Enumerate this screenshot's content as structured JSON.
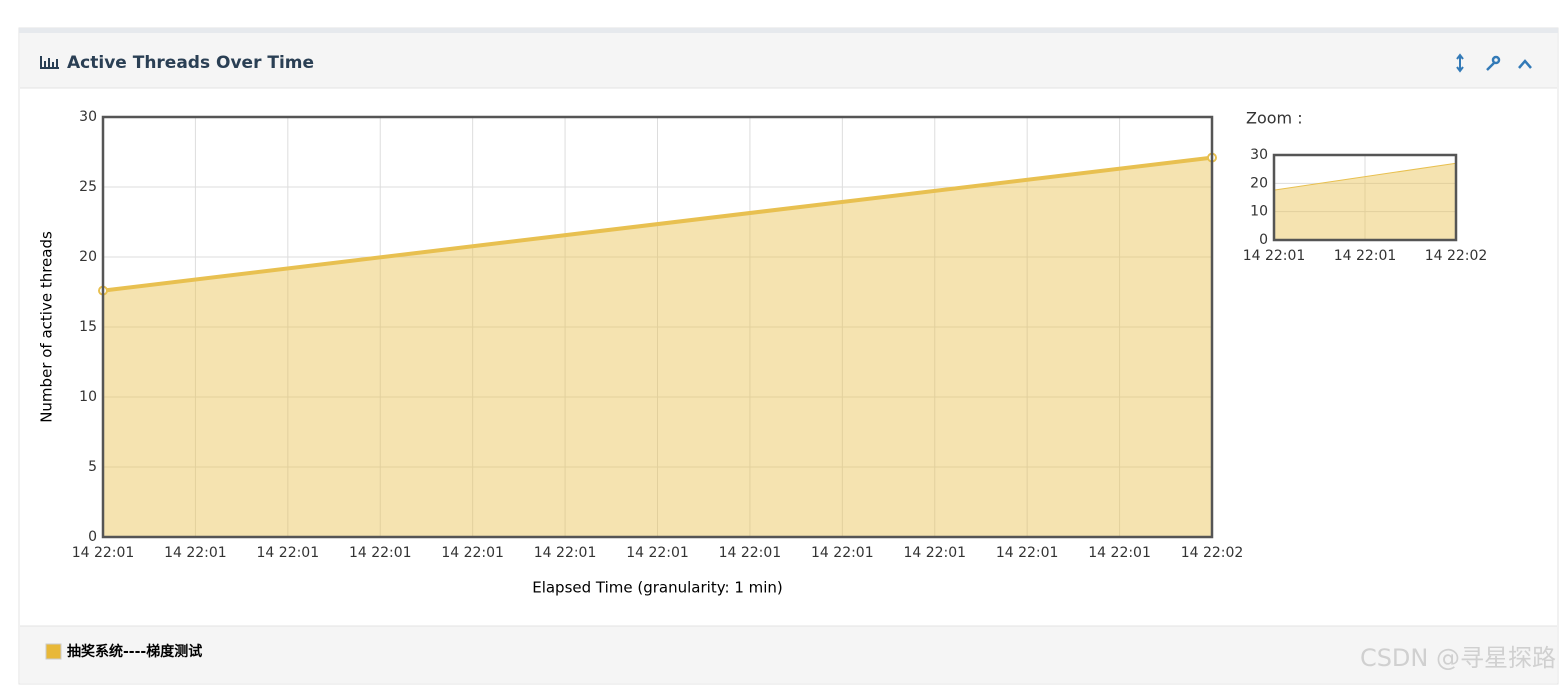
{
  "header": {
    "title": "Active Threads Over Time"
  },
  "chart_data": [
    {
      "type": "area",
      "ylabel": "Number of active threads",
      "xlabel": "Elapsed Time (granularity: 1 min)",
      "x": [
        "14 22:01",
        "14 22:02"
      ],
      "xtick_labels": [
        "14 22:01",
        "14 22:01",
        "14 22:01",
        "14 22:01",
        "14 22:01",
        "14 22:01",
        "14 22:01",
        "14 22:01",
        "14 22:01",
        "14 22:01",
        "14 22:01",
        "14 22:01",
        "14 22:02"
      ],
      "series": [
        {
          "name": "抽奖系统----梯度测试",
          "color": "#e8c050",
          "values": [
            17.6,
            27.1
          ]
        }
      ],
      "ylim": [
        0,
        30
      ],
      "yticks": [
        0,
        5,
        10,
        15,
        20,
        25,
        30
      ],
      "grid": true
    },
    {
      "type": "area",
      "title": "Zoom :",
      "x": [
        "14 22:01",
        "14 22:02"
      ],
      "xtick_labels": [
        "14 22:01",
        "14 22:01",
        "14 22:02"
      ],
      "series": [
        {
          "color": "#e8c050",
          "values": [
            17.6,
            27.1
          ]
        }
      ],
      "ylim": [
        0,
        30
      ],
      "yticks": [
        0,
        10,
        20,
        30
      ],
      "grid": true
    }
  ],
  "watermark": "CSDN @寻星探路"
}
